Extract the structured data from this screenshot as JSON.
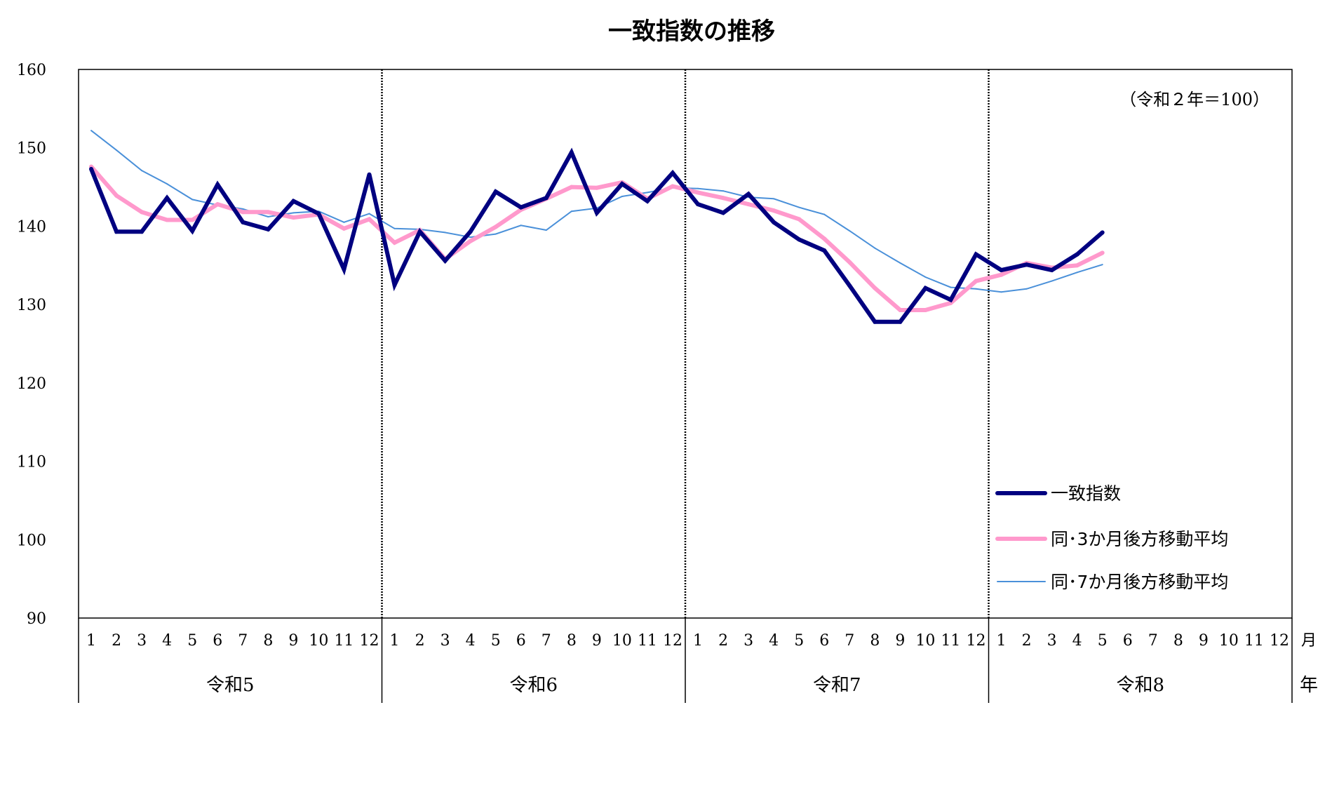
{
  "chart_data": {
    "type": "line",
    "title": "一致指数の推移",
    "annotation": "（令和２年＝100）",
    "ylim": [
      90,
      160
    ],
    "yticks": [
      "160",
      "150",
      "140",
      "130",
      "120",
      "110",
      "100",
      "90"
    ],
    "x_month_labels": [
      "1",
      "2",
      "3",
      "4",
      "5",
      "6",
      "7",
      "8",
      "9",
      "10",
      "11",
      "12",
      "1",
      "2",
      "3",
      "4",
      "5",
      "6",
      "7",
      "8",
      "9",
      "10",
      "11",
      "12",
      "1",
      "2",
      "3",
      "4",
      "5",
      "6",
      "7",
      "8",
      "9",
      "10",
      "11",
      "12",
      "1",
      "2",
      "3",
      "4",
      "5",
      "6",
      "7",
      "8",
      "9",
      "10",
      "11",
      "12"
    ],
    "x_month_unit": "月",
    "year_groups": [
      "令和5",
      "令和6",
      "令和7",
      "令和8"
    ],
    "x_year_unit": "年",
    "grid": false,
    "legend_position": "bottom-right",
    "series": [
      {
        "name": "一致指数",
        "color": "#000080",
        "values": [
          147.3,
          139.3,
          139.3,
          143.6,
          139.4,
          145.3,
          140.5,
          139.6,
          143.2,
          141.6,
          134.5,
          146.6,
          132.5,
          139.3,
          135.6,
          139.3,
          144.4,
          142.4,
          143.6,
          149.4,
          141.7,
          145.4,
          143.2,
          146.8,
          142.8,
          141.7,
          144.1,
          140.5,
          138.3,
          136.9,
          132.4,
          127.8,
          127.8,
          132.1,
          130.6,
          136.4,
          134.4,
          135.1,
          134.4,
          136.4,
          139.2
        ]
      },
      {
        "name": "同･3か月後方移動平均",
        "color": "#ff99cc",
        "values": [
          147.6,
          143.9,
          141.8,
          140.8,
          140.8,
          142.8,
          141.8,
          141.8,
          141.1,
          141.5,
          139.7,
          140.9,
          137.9,
          139.5,
          135.8,
          138.1,
          139.9,
          142.1,
          143.5,
          145.0,
          144.9,
          145.6,
          143.5,
          145.1,
          144.3,
          143.6,
          142.8,
          142.0,
          140.9,
          138.4,
          135.4,
          132.1,
          129.3,
          129.3,
          130.2,
          133.0,
          133.8,
          135.3,
          134.7,
          135.0,
          136.6
        ]
      },
      {
        "name": "同･7か月後方移動平均",
        "color": "#4a90d9",
        "values": [
          152.2,
          149.7,
          147.1,
          145.4,
          143.4,
          142.7,
          142.2,
          141.2,
          141.7,
          141.9,
          140.5,
          141.6,
          139.7,
          139.6,
          139.2,
          138.6,
          139.0,
          140.1,
          139.5,
          141.9,
          142.3,
          143.8,
          144.3,
          144.9,
          144.8,
          144.5,
          143.7,
          143.5,
          142.4,
          141.5,
          139.4,
          137.2,
          135.3,
          133.5,
          132.2,
          132.0,
          131.6,
          132.0,
          133.0,
          134.1,
          135.1
        ]
      }
    ]
  }
}
